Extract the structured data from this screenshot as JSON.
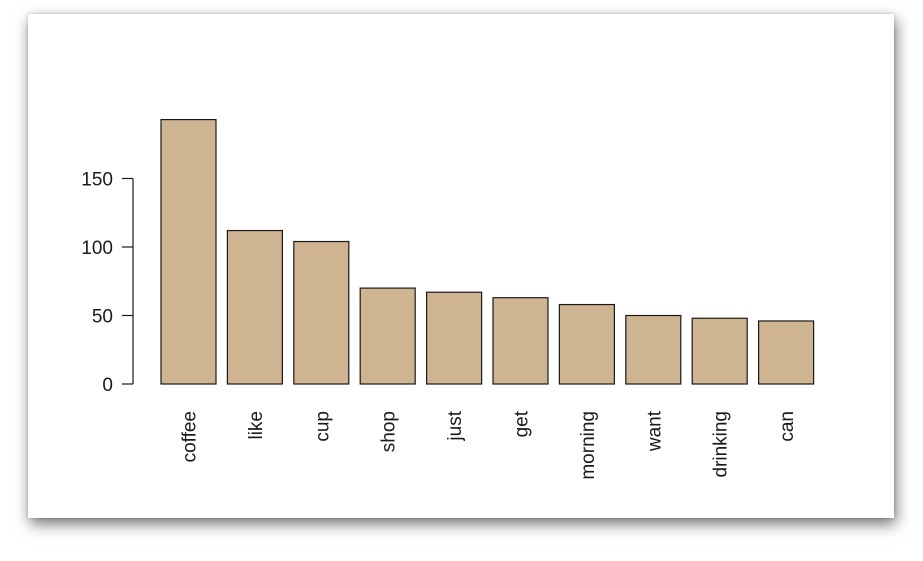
{
  "chart_data": {
    "type": "bar",
    "categories": [
      "coffee",
      "like",
      "cup",
      "shop",
      "just",
      "get",
      "morning",
      "want",
      "drinking",
      "can"
    ],
    "values": [
      193,
      112,
      104,
      70,
      67,
      63,
      58,
      50,
      48,
      46
    ],
    "title": "",
    "xlabel": "",
    "ylabel": "",
    "ylim": [
      0,
      193
    ],
    "yticks": [
      0,
      50,
      100,
      150
    ],
    "bar_color": "#cfb491",
    "bar_edge_color": "#1a1a1a",
    "grid": false,
    "legend": "none",
    "x_label_rotation": "vertical"
  }
}
